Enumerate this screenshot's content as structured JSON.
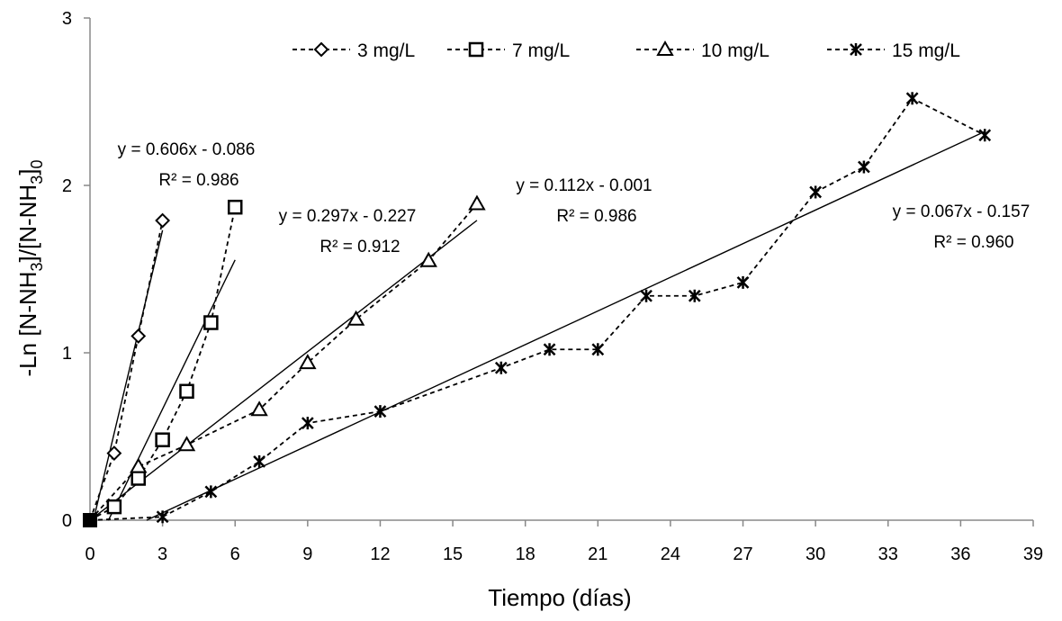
{
  "chart_data": {
    "type": "scatter",
    "xlabel": "Tiempo (días)",
    "ylabel": {
      "pre": "-Ln [N-NH",
      "sub1": "3",
      "mid": "]/[N-NH",
      "sub2": "3",
      "post": "]",
      "sub3": "0"
    },
    "xlim": [
      0,
      39
    ],
    "ylim": [
      0,
      3
    ],
    "xticks": [
      0,
      3,
      6,
      9,
      12,
      15,
      18,
      21,
      24,
      27,
      30,
      33,
      36,
      39
    ],
    "yticks": [
      0,
      1,
      2,
      3
    ],
    "grid": false,
    "legend_position": "top",
    "series": [
      {
        "name": "3 mg/L",
        "marker": "diamond",
        "x": [
          0,
          1,
          2,
          3
        ],
        "y": [
          0,
          0.4,
          1.1,
          1.79
        ],
        "trendline": {
          "slope": 0.606,
          "intercept": -0.086,
          "x_range": [
            0.14,
            3
          ]
        },
        "equation": "y = 0.606x - 0.086",
        "r2": "R² = 0.986"
      },
      {
        "name": "7 mg/L",
        "marker": "square",
        "x": [
          0,
          1,
          2,
          3,
          4,
          5,
          6
        ],
        "y": [
          0,
          0.08,
          0.25,
          0.48,
          0.77,
          1.18,
          1.87
        ],
        "trendline": {
          "slope": 0.297,
          "intercept": -0.227,
          "x_range": [
            0.76,
            6
          ]
        },
        "equation": "y = 0.297x - 0.227",
        "r2": "R² = 0.912"
      },
      {
        "name": "10 mg/L",
        "marker": "triangle",
        "x": [
          0,
          2,
          4,
          7,
          9,
          11,
          14,
          16
        ],
        "y": [
          0,
          0.32,
          0.45,
          0.66,
          0.94,
          1.2,
          1.55,
          1.89
        ],
        "trendline": {
          "slope": 0.112,
          "intercept": -0.001,
          "x_range": [
            0,
            16
          ]
        },
        "equation": "y = 0.112x - 0.001",
        "r2": "R² = 0.986"
      },
      {
        "name": "15 mg/L",
        "marker": "star",
        "x": [
          0,
          3,
          5,
          7,
          9,
          12,
          17,
          19,
          21,
          23,
          25,
          27,
          30,
          32,
          34,
          37
        ],
        "y": [
          0,
          0.02,
          0.17,
          0.35,
          0.58,
          0.65,
          0.91,
          1.02,
          1.02,
          1.34,
          1.34,
          1.42,
          1.96,
          2.11,
          2.52,
          2.3
        ],
        "trendline": {
          "slope": 0.067,
          "intercept": -0.157,
          "x_range": [
            2.34,
            37
          ]
        },
        "equation": "y = 0.067x - 0.157",
        "r2": "R² = 0.960"
      }
    ]
  }
}
